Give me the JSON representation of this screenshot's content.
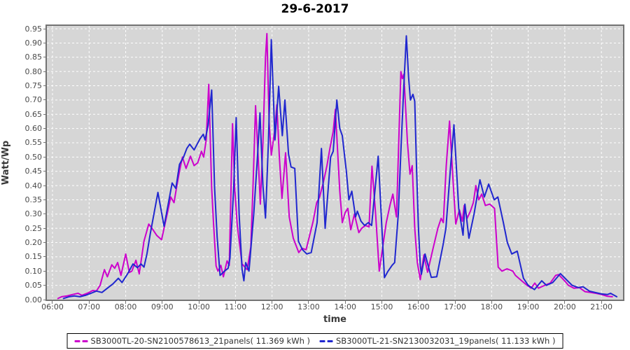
{
  "title": "29-6-2017",
  "axes": {
    "y_label": "Watt/Wp",
    "x_label": "time"
  },
  "chart_data": {
    "type": "line",
    "title": "29-6-2017",
    "xlabel": "time",
    "ylabel": "Watt/Wp",
    "x_unit": "hour-of-day",
    "xlim": [
      5.847,
      21.59
    ],
    "ylim": [
      0,
      0.96
    ],
    "grid": "on-white-dashed",
    "legend_position": "bottom-center",
    "plot_bg_color": "#d6d6d6",
    "grid_color": "#ffffff",
    "frame_color": "#737373",
    "x_tick_labels": [
      "06:00",
      "07:00",
      "08:00",
      "09:00",
      "10:00",
      "11:00",
      "12:00",
      "13:00",
      "14:00",
      "15:00",
      "16:00",
      "17:00",
      "18:00",
      "19:00",
      "20:00",
      "21:00"
    ],
    "y_tick_labels": [
      "0.00",
      "0.05",
      "0.10",
      "0.15",
      "0.20",
      "0.25",
      "0.30",
      "0.35",
      "0.40",
      "0.45",
      "0.50",
      "0.55",
      "0.60",
      "0.65",
      "0.70",
      "0.75",
      "0.80",
      "0.85",
      "0.90",
      "0.95"
    ],
    "series": [
      {
        "name": "SB3000TL-20-SN2100578613_21panels( 11.369 kWh )",
        "energy_kwh": 11.369,
        "color": "#cc00cc",
        "points": [
          [
            6.15,
            0.004
          ],
          [
            6.25,
            0.01
          ],
          [
            6.4,
            0.013
          ],
          [
            6.55,
            0.018
          ],
          [
            6.7,
            0.022
          ],
          [
            6.8,
            0.015
          ],
          [
            6.95,
            0.022
          ],
          [
            7.1,
            0.032
          ],
          [
            7.2,
            0.03
          ],
          [
            7.3,
            0.05
          ],
          [
            7.42,
            0.105
          ],
          [
            7.5,
            0.08
          ],
          [
            7.62,
            0.122
          ],
          [
            7.7,
            0.11
          ],
          [
            7.78,
            0.13
          ],
          [
            7.87,
            0.085
          ],
          [
            8.0,
            0.16
          ],
          [
            8.1,
            0.095
          ],
          [
            8.17,
            0.1
          ],
          [
            8.28,
            0.138
          ],
          [
            8.37,
            0.09
          ],
          [
            8.5,
            0.205
          ],
          [
            8.63,
            0.265
          ],
          [
            8.72,
            0.25
          ],
          [
            8.85,
            0.225
          ],
          [
            8.98,
            0.21
          ],
          [
            9.15,
            0.31
          ],
          [
            9.23,
            0.36
          ],
          [
            9.32,
            0.34
          ],
          [
            9.4,
            0.4
          ],
          [
            9.47,
            0.45
          ],
          [
            9.55,
            0.5
          ],
          [
            9.65,
            0.46
          ],
          [
            9.77,
            0.503
          ],
          [
            9.87,
            0.47
          ],
          [
            9.97,
            0.48
          ],
          [
            10.07,
            0.52
          ],
          [
            10.13,
            0.5
          ],
          [
            10.2,
            0.56
          ],
          [
            10.27,
            0.755
          ],
          [
            10.35,
            0.39
          ],
          [
            10.4,
            0.27
          ],
          [
            10.47,
            0.118
          ],
          [
            10.52,
            0.1
          ],
          [
            10.6,
            0.12
          ],
          [
            10.67,
            0.08
          ],
          [
            10.77,
            0.136
          ],
          [
            10.83,
            0.12
          ],
          [
            10.92,
            0.617
          ],
          [
            10.98,
            0.39
          ],
          [
            11.05,
            0.26
          ],
          [
            11.18,
            0.125
          ],
          [
            11.32,
            0.105
          ],
          [
            11.42,
            0.185
          ],
          [
            11.48,
            0.4
          ],
          [
            11.55,
            0.68
          ],
          [
            11.62,
            0.5
          ],
          [
            11.68,
            0.335
          ],
          [
            11.75,
            0.55
          ],
          [
            11.82,
            0.85
          ],
          [
            11.86,
            0.933
          ],
          [
            11.92,
            0.62
          ],
          [
            11.98,
            0.507
          ],
          [
            12.08,
            0.6
          ],
          [
            12.13,
            0.683
          ],
          [
            12.2,
            0.5
          ],
          [
            12.27,
            0.355
          ],
          [
            12.37,
            0.515
          ],
          [
            12.47,
            0.29
          ],
          [
            12.58,
            0.215
          ],
          [
            12.73,
            0.165
          ],
          [
            12.82,
            0.18
          ],
          [
            12.93,
            0.175
          ],
          [
            13.12,
            0.273
          ],
          [
            13.22,
            0.34
          ],
          [
            13.3,
            0.36
          ],
          [
            13.4,
            0.41
          ],
          [
            13.5,
            0.47
          ],
          [
            13.58,
            0.53
          ],
          [
            13.67,
            0.59
          ],
          [
            13.73,
            0.667
          ],
          [
            13.85,
            0.38
          ],
          [
            13.92,
            0.27
          ],
          [
            14.0,
            0.306
          ],
          [
            14.07,
            0.32
          ],
          [
            14.15,
            0.245
          ],
          [
            14.25,
            0.3
          ],
          [
            14.37,
            0.235
          ],
          [
            14.45,
            0.25
          ],
          [
            14.55,
            0.26
          ],
          [
            14.65,
            0.255
          ],
          [
            14.73,
            0.468
          ],
          [
            14.83,
            0.3
          ],
          [
            14.93,
            0.1
          ],
          [
            15.02,
            0.18
          ],
          [
            15.12,
            0.27
          ],
          [
            15.23,
            0.335
          ],
          [
            15.3,
            0.37
          ],
          [
            15.4,
            0.29
          ],
          [
            15.52,
            0.8
          ],
          [
            15.56,
            0.775
          ],
          [
            15.6,
            0.79
          ],
          [
            15.7,
            0.55
          ],
          [
            15.77,
            0.44
          ],
          [
            15.83,
            0.47
          ],
          [
            15.9,
            0.25
          ],
          [
            15.97,
            0.13
          ],
          [
            16.05,
            0.07
          ],
          [
            16.15,
            0.157
          ],
          [
            16.25,
            0.096
          ],
          [
            16.4,
            0.18
          ],
          [
            16.53,
            0.25
          ],
          [
            16.62,
            0.285
          ],
          [
            16.68,
            0.27
          ],
          [
            16.76,
            0.47
          ],
          [
            16.85,
            0.626
          ],
          [
            16.93,
            0.45
          ],
          [
            17.02,
            0.265
          ],
          [
            17.12,
            0.315
          ],
          [
            17.2,
            0.275
          ],
          [
            17.25,
            0.33
          ],
          [
            17.33,
            0.285
          ],
          [
            17.42,
            0.31
          ],
          [
            17.5,
            0.34
          ],
          [
            17.57,
            0.4
          ],
          [
            17.65,
            0.35
          ],
          [
            17.73,
            0.37
          ],
          [
            17.83,
            0.33
          ],
          [
            17.95,
            0.335
          ],
          [
            18.08,
            0.32
          ],
          [
            18.18,
            0.114
          ],
          [
            18.28,
            0.1
          ],
          [
            18.42,
            0.108
          ],
          [
            18.58,
            0.1
          ],
          [
            18.65,
            0.085
          ],
          [
            18.83,
            0.065
          ],
          [
            18.97,
            0.05
          ],
          [
            19.08,
            0.04
          ],
          [
            19.18,
            0.058
          ],
          [
            19.28,
            0.04
          ],
          [
            19.45,
            0.05
          ],
          [
            19.6,
            0.058
          ],
          [
            19.75,
            0.085
          ],
          [
            19.83,
            0.088
          ],
          [
            20.0,
            0.065
          ],
          [
            20.1,
            0.05
          ],
          [
            20.25,
            0.04
          ],
          [
            20.4,
            0.042
          ],
          [
            20.55,
            0.028
          ],
          [
            20.7,
            0.025
          ],
          [
            20.85,
            0.022
          ],
          [
            21.0,
            0.018
          ],
          [
            21.15,
            0.012
          ],
          [
            21.3,
            0.01
          ]
        ]
      },
      {
        "name": "SB3000TL-21-SN2130032031_19panels( 11.133 kWh )",
        "energy_kwh": 11.133,
        "color": "#2027cf",
        "points": [
          [
            6.3,
            0.004
          ],
          [
            6.45,
            0.01
          ],
          [
            6.6,
            0.013
          ],
          [
            6.75,
            0.01
          ],
          [
            6.9,
            0.015
          ],
          [
            7.05,
            0.022
          ],
          [
            7.2,
            0.03
          ],
          [
            7.35,
            0.025
          ],
          [
            7.5,
            0.04
          ],
          [
            7.65,
            0.055
          ],
          [
            7.8,
            0.075
          ],
          [
            7.9,
            0.06
          ],
          [
            8.05,
            0.09
          ],
          [
            8.2,
            0.125
          ],
          [
            8.32,
            0.112
          ],
          [
            8.42,
            0.125
          ],
          [
            8.5,
            0.114
          ],
          [
            8.58,
            0.16
          ],
          [
            8.67,
            0.23
          ],
          [
            8.88,
            0.376
          ],
          [
            9.05,
            0.257
          ],
          [
            9.27,
            0.409
          ],
          [
            9.37,
            0.39
          ],
          [
            9.47,
            0.474
          ],
          [
            9.58,
            0.5
          ],
          [
            9.67,
            0.53
          ],
          [
            9.75,
            0.545
          ],
          [
            9.87,
            0.525
          ],
          [
            10.03,
            0.564
          ],
          [
            10.12,
            0.58
          ],
          [
            10.17,
            0.56
          ],
          [
            10.25,
            0.61
          ],
          [
            10.35,
            0.735
          ],
          [
            10.43,
            0.39
          ],
          [
            10.5,
            0.22
          ],
          [
            10.58,
            0.085
          ],
          [
            10.7,
            0.1
          ],
          [
            10.8,
            0.11
          ],
          [
            10.85,
            0.145
          ],
          [
            10.95,
            0.39
          ],
          [
            11.02,
            0.638
          ],
          [
            11.1,
            0.3
          ],
          [
            11.18,
            0.106
          ],
          [
            11.23,
            0.066
          ],
          [
            11.28,
            0.13
          ],
          [
            11.37,
            0.1
          ],
          [
            11.5,
            0.3
          ],
          [
            11.6,
            0.5
          ],
          [
            11.67,
            0.655
          ],
          [
            11.75,
            0.4
          ],
          [
            11.82,
            0.286
          ],
          [
            11.9,
            0.55
          ],
          [
            11.98,
            0.912
          ],
          [
            12.08,
            0.56
          ],
          [
            12.18,
            0.748
          ],
          [
            12.28,
            0.575
          ],
          [
            12.35,
            0.7
          ],
          [
            12.45,
            0.51
          ],
          [
            12.52,
            0.465
          ],
          [
            12.62,
            0.46
          ],
          [
            12.72,
            0.205
          ],
          [
            12.83,
            0.175
          ],
          [
            12.95,
            0.16
          ],
          [
            13.07,
            0.165
          ],
          [
            13.23,
            0.27
          ],
          [
            13.35,
            0.53
          ],
          [
            13.45,
            0.25
          ],
          [
            13.6,
            0.5
          ],
          [
            13.67,
            0.52
          ],
          [
            13.77,
            0.7
          ],
          [
            13.85,
            0.6
          ],
          [
            13.92,
            0.575
          ],
          [
            14.03,
            0.45
          ],
          [
            14.1,
            0.35
          ],
          [
            14.18,
            0.38
          ],
          [
            14.28,
            0.29
          ],
          [
            14.33,
            0.31
          ],
          [
            14.43,
            0.275
          ],
          [
            14.53,
            0.26
          ],
          [
            14.63,
            0.27
          ],
          [
            14.72,
            0.26
          ],
          [
            14.9,
            0.503
          ],
          [
            15.07,
            0.077
          ],
          [
            15.17,
            0.1
          ],
          [
            15.28,
            0.12
          ],
          [
            15.35,
            0.13
          ],
          [
            15.45,
            0.3
          ],
          [
            15.53,
            0.55
          ],
          [
            15.6,
            0.75
          ],
          [
            15.67,
            0.925
          ],
          [
            15.73,
            0.78
          ],
          [
            15.78,
            0.7
          ],
          [
            15.85,
            0.72
          ],
          [
            15.9,
            0.695
          ],
          [
            15.95,
            0.45
          ],
          [
            16.0,
            0.25
          ],
          [
            16.05,
            0.12
          ],
          [
            16.08,
            0.089
          ],
          [
            16.18,
            0.16
          ],
          [
            16.35,
            0.078
          ],
          [
            16.5,
            0.08
          ],
          [
            16.67,
            0.19
          ],
          [
            16.75,
            0.25
          ],
          [
            16.88,
            0.47
          ],
          [
            16.97,
            0.613
          ],
          [
            17.1,
            0.32
          ],
          [
            17.22,
            0.226
          ],
          [
            17.27,
            0.335
          ],
          [
            17.38,
            0.215
          ],
          [
            17.52,
            0.3
          ],
          [
            17.68,
            0.42
          ],
          [
            17.8,
            0.36
          ],
          [
            17.92,
            0.405
          ],
          [
            18.07,
            0.35
          ],
          [
            18.17,
            0.36
          ],
          [
            18.32,
            0.27
          ],
          [
            18.43,
            0.2
          ],
          [
            18.55,
            0.16
          ],
          [
            18.7,
            0.17
          ],
          [
            18.87,
            0.075
          ],
          [
            19.0,
            0.05
          ],
          [
            19.17,
            0.035
          ],
          [
            19.37,
            0.066
          ],
          [
            19.5,
            0.05
          ],
          [
            19.67,
            0.06
          ],
          [
            19.88,
            0.091
          ],
          [
            20.08,
            0.065
          ],
          [
            20.2,
            0.05
          ],
          [
            20.37,
            0.042
          ],
          [
            20.5,
            0.045
          ],
          [
            20.67,
            0.03
          ],
          [
            20.83,
            0.025
          ],
          [
            21.0,
            0.02
          ],
          [
            21.17,
            0.018
          ],
          [
            21.25,
            0.022
          ],
          [
            21.42,
            0.01
          ]
        ]
      }
    ]
  }
}
